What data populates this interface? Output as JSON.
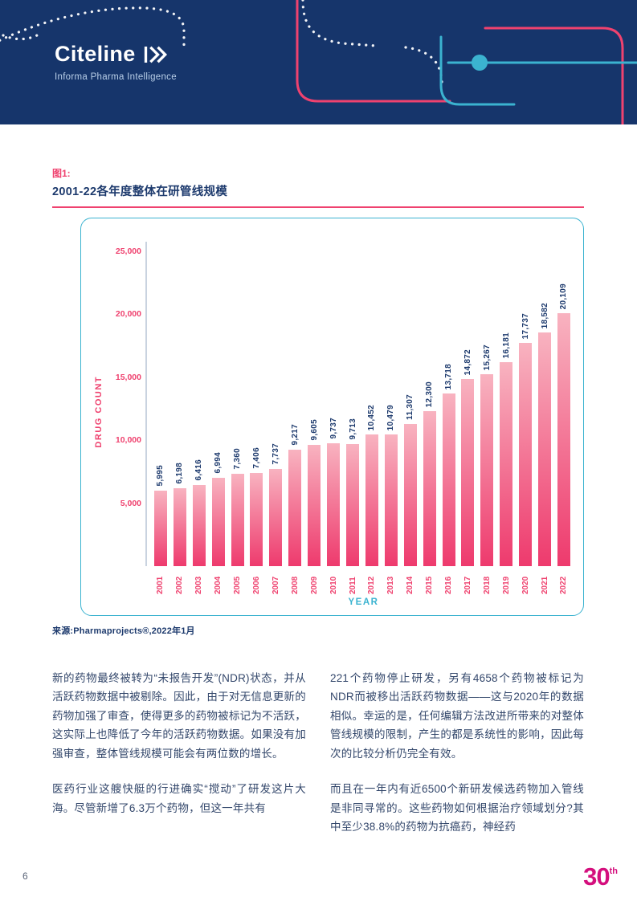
{
  "header": {
    "logo": "Citeline",
    "subtitle": "Informa Pharma Intelligence"
  },
  "figure": {
    "label": "图1:",
    "title": "2001-22各年度整体在研管线规模",
    "source": "来源:Pharmaprojects®,2022年1月"
  },
  "chart_data": {
    "type": "bar",
    "title": "2001-22各年度整体在研管线规模",
    "xlabel": "YEAR",
    "ylabel": "DRUG COUNT",
    "categories": [
      "2001",
      "2002",
      "2003",
      "2004",
      "2005",
      "2006",
      "2007",
      "2008",
      "2009",
      "2010",
      "2011",
      "2012",
      "2013",
      "2014",
      "2015",
      "2016",
      "2017",
      "2018",
      "2019",
      "2020",
      "2021",
      "2022"
    ],
    "values": [
      5995,
      6198,
      6416,
      6994,
      7360,
      7406,
      7737,
      9217,
      9605,
      9737,
      9713,
      10452,
      10479,
      11307,
      12300,
      13718,
      14872,
      15267,
      16181,
      17737,
      18582,
      20109
    ],
    "ylim": [
      0,
      25000
    ],
    "yticks": [
      5000,
      10000,
      15000,
      20000,
      25000
    ],
    "grid": false,
    "legend_position": "none",
    "value_labels_rotated": true
  },
  "body": {
    "left": [
      "新的药物最终被转为“未报告开发”(NDR)状态，并从活跃药物数据中被剔除。因此，由于对无信息更新的药物加强了审查，使得更多的药物被标记为不活跃，这实际上也降低了今年的活跃药物数据。如果没有加强审查，整体管线规模可能会有两位数的增长。",
      "医药行业这艘快艇的行进确实“搅动”了研发这片大海。尽管新增了6.3万个药物，但这一年共有"
    ],
    "right": [
      "221个药物停止研发，另有4658个药物被标记为NDR而被移出活跃药物数据——这与2020年的数据相似。幸运的是，任何编辑方法改进所带来的对整体管线规模的限制，产生的都是系统性的影响，因此每次的比较分析仍完全有效。",
      "而且在一年内有近6500个新研发候选药物加入管线是非同寻常的。这些药物如何根据治疗领域划分?其中至少38.8%的药物为抗癌药，神经药"
    ]
  },
  "footer": {
    "page_number": "6",
    "logo_number": "30",
    "logo_suffix": "th"
  },
  "colors": {
    "banner": "#16356b",
    "navy": "#1d3a6d",
    "pink": "#ef426f",
    "cyan": "#3bb3d0",
    "bar-top": "#f8b3c0",
    "bar-bottom": "#ee3a6d",
    "body-text": "#33476b",
    "magenta": "#d40f7d"
  }
}
